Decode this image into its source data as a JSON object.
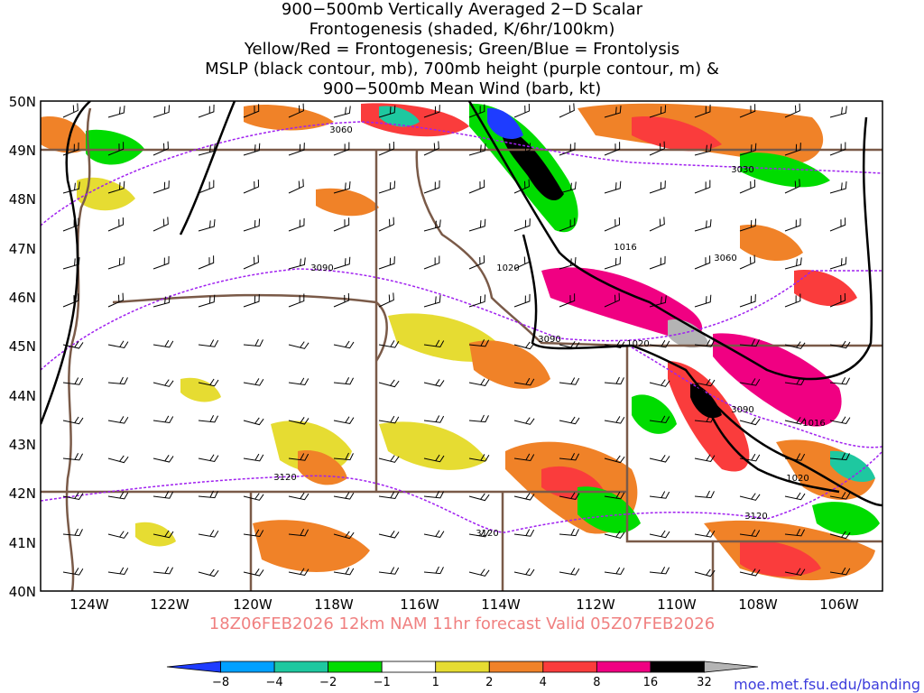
{
  "title": {
    "lines": [
      "900−500mb Vertically Averaged 2−D Scalar",
      "Frontogenesis (shaded, K/6hr/100km)",
      "Yellow/Red = Frontogenesis;  Green/Blue = Frontolysis",
      "MSLP (black contour, mb), 700mb height (purple contour, m) &",
      "900−500mb Mean Wind (barb, kt)"
    ]
  },
  "map": {
    "lon_range": [
      -125,
      -105
    ],
    "lat_range": [
      40,
      50
    ],
    "lat_labels": [
      "50N",
      "49N",
      "48N",
      "47N",
      "46N",
      "45N",
      "44N",
      "43N",
      "42N",
      "41N",
      "40N"
    ],
    "lon_labels": [
      "124W",
      "122W",
      "120W",
      "118W",
      "116W",
      "114W",
      "112W",
      "110W",
      "108W",
      "106W"
    ],
    "height_contour_labels": [
      "3060",
      "3030",
      "3060",
      "3090",
      "3090",
      "3090",
      "3120",
      "3120",
      "3120"
    ],
    "pressure_contour_labels": [
      "1020",
      "1016",
      "1020",
      "1016",
      "1020"
    ],
    "colors": {
      "height_contour": "#a020f0",
      "pressure_contour": "#000000",
      "state_border": "#7a5a48",
      "frontogenesis_shades": [
        "#ffff80",
        "#e6dc32",
        "#f08228",
        "#fa3c3c",
        "#f00082",
        "#000000",
        "#b4b4b4"
      ],
      "frontolysis_shades": [
        "#1e3cff",
        "#00a0ff",
        "#00dc00",
        "#64e664",
        "#1ec8a0"
      ]
    }
  },
  "footer": {
    "forecast_text": "18Z06FEB2026 12km NAM 11hr forecast Valid 05Z07FEB2026",
    "forecast_color": "#f08080",
    "credit": "moe.met.fsu.edu/banding",
    "credit_color": "#3c3cdc"
  },
  "colorbar": {
    "labels": [
      "−8",
      "−4",
      "−2",
      "−1",
      "1",
      "2",
      "4",
      "8",
      "16",
      "32"
    ],
    "colors": [
      "#1e3cff",
      "#00a0ff",
      "#1ec8a0",
      "#00dc00",
      "#ffffff",
      "#e6dc32",
      "#f08228",
      "#fa3c3c",
      "#f00082",
      "#000000",
      "#b4b4b4"
    ]
  }
}
